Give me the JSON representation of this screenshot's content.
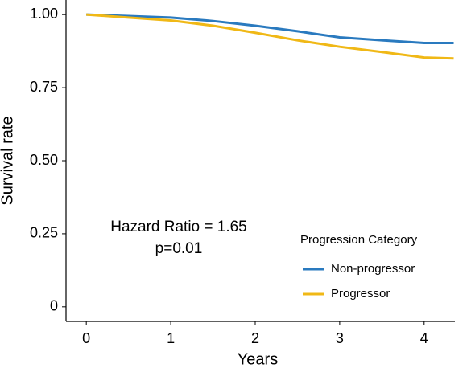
{
  "chart_data": {
    "type": "line",
    "x_label": "Years",
    "y_label": "Survival rate",
    "annotations": [
      "Hazard Ratio = 1.65",
      "p=0.01"
    ],
    "legend_title": "Progression Category",
    "legend_position": "lower right",
    "grid": false,
    "x": [
      0,
      0.5,
      1,
      1.5,
      2,
      2.5,
      3,
      3.5,
      4,
      4.35
    ],
    "series": [
      {
        "name": "Non-progressor",
        "color": "#2a7abf",
        "values": [
          1.0,
          0.995,
          0.99,
          0.978,
          0.962,
          0.943,
          0.922,
          0.912,
          0.903,
          0.903
        ]
      },
      {
        "name": "Progressor",
        "color": "#f0b816",
        "values": [
          1.0,
          0.99,
          0.98,
          0.962,
          0.938,
          0.912,
          0.89,
          0.872,
          0.853,
          0.85
        ]
      }
    ],
    "xlim": [
      -0.24,
      4.45
    ],
    "ylim": [
      -0.05,
      1.05
    ],
    "xticks": [
      0,
      1,
      2,
      3,
      4
    ],
    "yticks": [
      0,
      0.25,
      {
        "value": 0.5,
        "label": "0.50"
      },
      0.75,
      {
        "value": 1,
        "label": "1.00"
      }
    ]
  }
}
